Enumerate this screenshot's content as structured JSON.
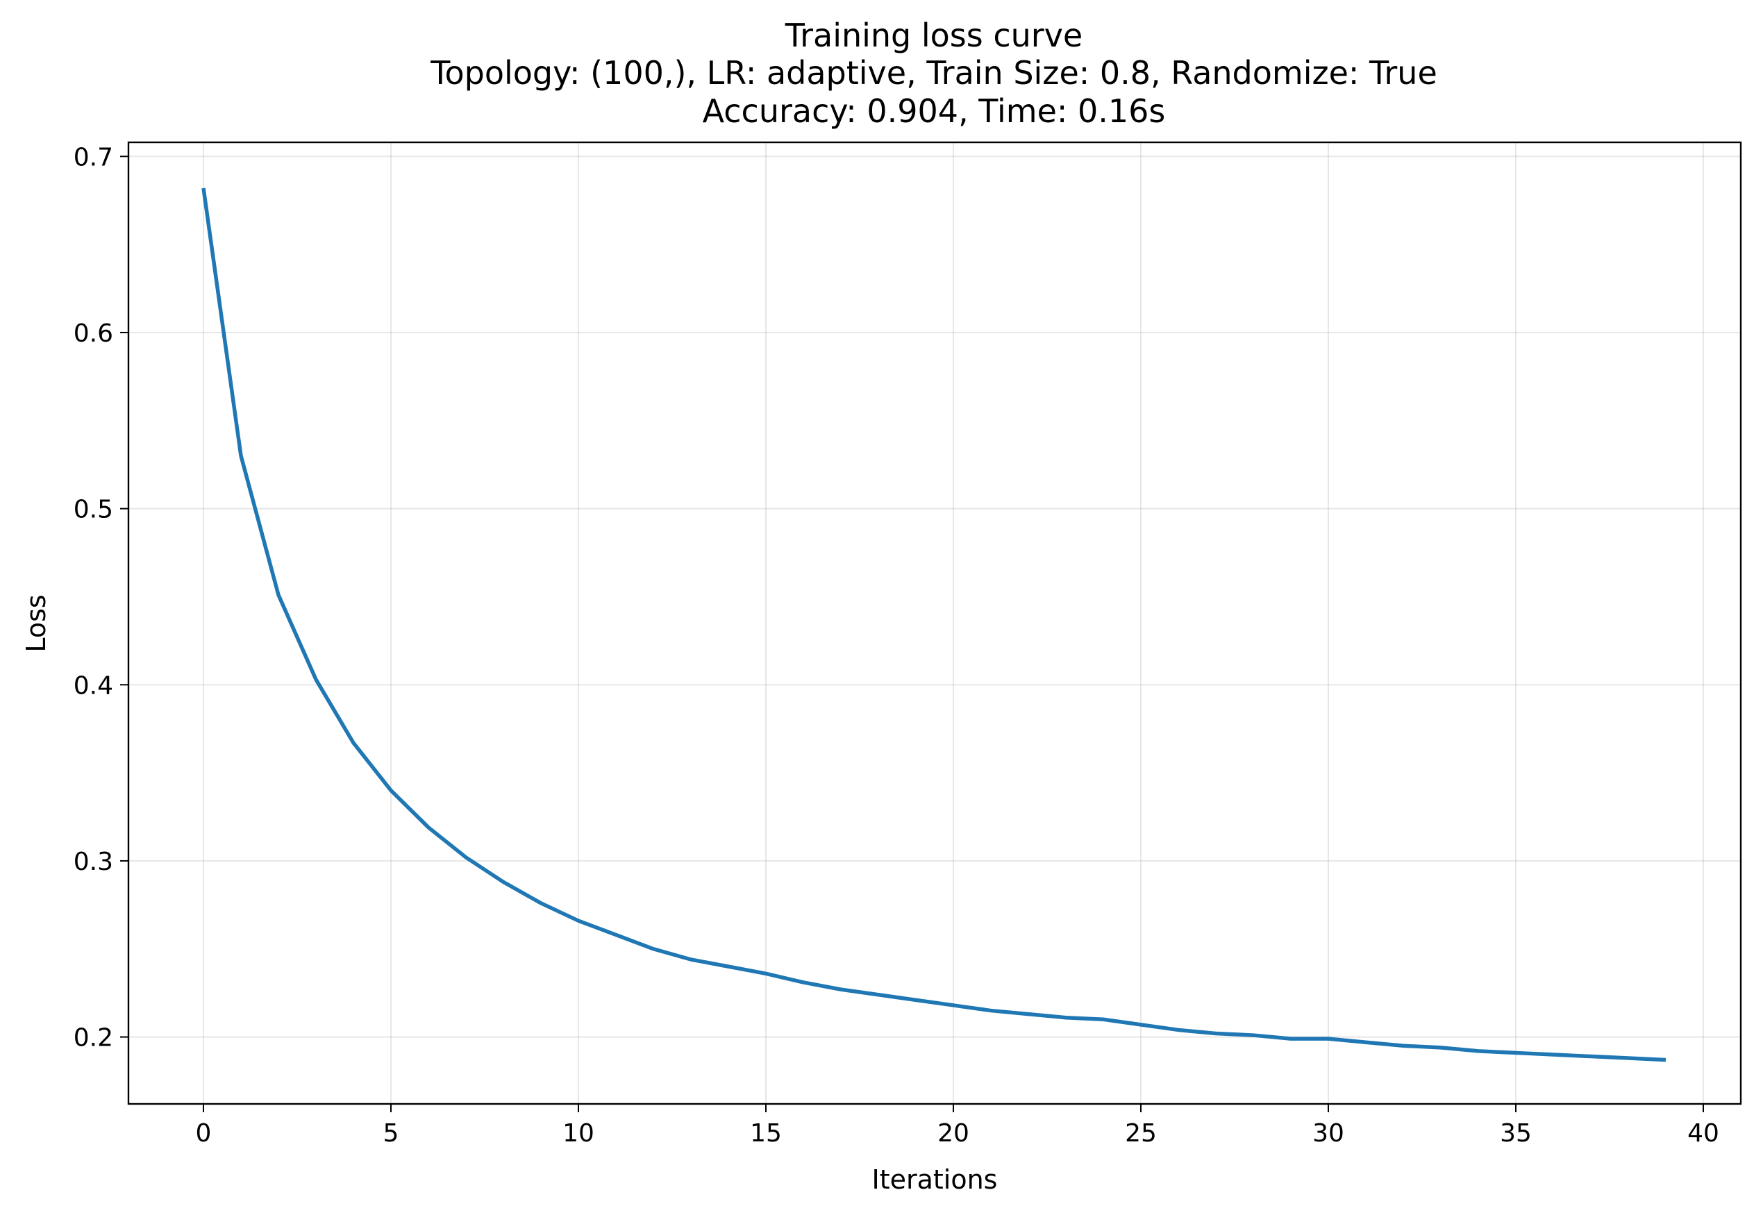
{
  "colors": {
    "series_line": "#1f77b4",
    "grid": "#b0b0b0",
    "axes": "#000000"
  },
  "chart_data": {
    "type": "line",
    "title": "Training loss curve",
    "subtitle_lines": [
      "Topology: (100,), LR: adaptive, Train Size: 0.8, Randomize: True",
      "Accuracy: 0.904, Time: 0.16s"
    ],
    "xlabel": "Iterations",
    "ylabel": "Loss",
    "xlim": [
      -2,
      41
    ],
    "ylim": [
      0.162,
      0.708
    ],
    "xticks": [
      0,
      5,
      10,
      15,
      20,
      25,
      30,
      35,
      40
    ],
    "xtick_labels": [
      "0",
      "5",
      "10",
      "15",
      "20",
      "25",
      "30",
      "35",
      "40"
    ],
    "yticks": [
      0.2,
      0.3,
      0.4,
      0.5,
      0.6,
      0.7
    ],
    "ytick_labels": [
      "0.2",
      "0.3",
      "0.4",
      "0.5",
      "0.6",
      "0.7"
    ],
    "grid": true,
    "legend": "none",
    "series": [
      {
        "x": [
          0,
          1,
          2,
          3,
          4,
          5,
          6,
          7,
          8,
          9,
          10,
          11,
          12,
          13,
          14,
          15,
          16,
          17,
          18,
          19,
          20,
          21,
          22,
          23,
          24,
          25,
          26,
          27,
          28,
          29,
          30,
          31,
          32,
          33,
          34,
          35,
          36,
          37,
          38,
          39
        ],
        "values": [
          0.682,
          0.53,
          0.451,
          0.403,
          0.367,
          0.34,
          0.319,
          0.302,
          0.288,
          0.276,
          0.266,
          0.258,
          0.25,
          0.244,
          0.24,
          0.236,
          0.231,
          0.227,
          0.224,
          0.221,
          0.218,
          0.215,
          0.213,
          0.211,
          0.21,
          0.207,
          0.204,
          0.202,
          0.201,
          0.199,
          0.199,
          0.197,
          0.195,
          0.194,
          0.192,
          0.191,
          0.19,
          0.189,
          0.188,
          0.187
        ]
      }
    ]
  }
}
